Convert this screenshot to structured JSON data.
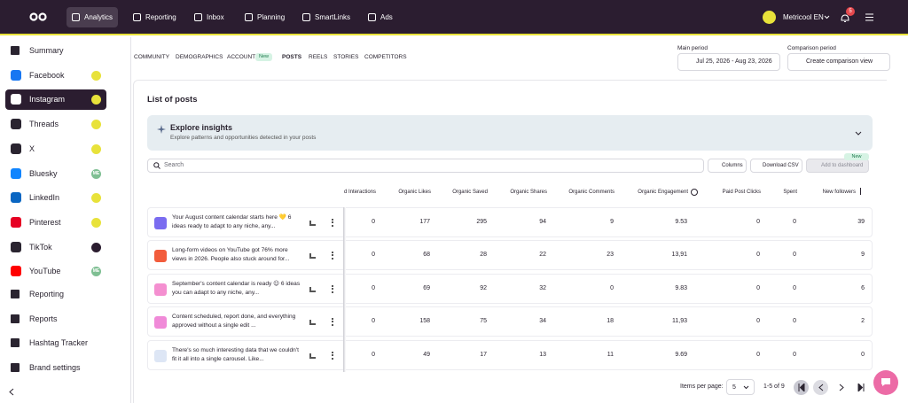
{
  "topnav": {
    "items": [
      "Analytics",
      "Reporting",
      "Inbox",
      "Planning",
      "SmartLinks",
      "Ads"
    ],
    "account": "Metricool EN",
    "notifications": "5"
  },
  "sidebar": {
    "items": [
      {
        "label": "Summary"
      },
      {
        "label": "Facebook"
      },
      {
        "label": "Instagram"
      },
      {
        "label": "Threads"
      },
      {
        "label": "X"
      },
      {
        "label": "Bluesky",
        "badge": "ME"
      },
      {
        "label": "LinkedIn"
      },
      {
        "label": "Pinterest"
      },
      {
        "label": "TikTok"
      },
      {
        "label": "YouTube",
        "badge": "ME"
      },
      {
        "label": "Reporting"
      },
      {
        "label": "Reports"
      },
      {
        "label": "Hashtag Tracker"
      },
      {
        "label": "Brand settings"
      }
    ]
  },
  "tabs": {
    "items": [
      "COMMUNITY",
      "DEMOGRAPHICS",
      "ACCOUNT",
      "POSTS",
      "REELS",
      "STORIES",
      "COMPETITORS"
    ],
    "new_badge": "New"
  },
  "periods": {
    "main_label": "Main period",
    "main_value": "Jul 25, 2026 - Aug 23, 2026",
    "comparison_label": "Comparison period",
    "comparison_value": "Create comparison view"
  },
  "section_title": "List of posts",
  "insights": {
    "title": "Explore insights",
    "subtitle": "Explore patterns and opportunities detected in your posts"
  },
  "toolbar": {
    "search": "Search",
    "columns": "Columns",
    "download": "Download CSV",
    "add": "Add to dashboard",
    "new_badge": "New"
  },
  "table": {
    "columns": [
      "d Interactions",
      "Organic Likes",
      "Organic Saved",
      "Organic Shares",
      "Organic Comments",
      "Organic Engagement",
      "Paid Post Clicks",
      "Spent",
      "New followers"
    ],
    "rows": [
      {
        "text": "Your August content calendar starts here 💛 6 ideas ready to adapt to any niche, any...",
        "cells": [
          "0",
          "177",
          "295",
          "94",
          "9",
          "9.53",
          "0",
          "0",
          "39"
        ]
      },
      {
        "text": "Long-form videos on YouTube got 76% more views in 2026. People also stuck around for...",
        "cells": [
          "0",
          "68",
          "28",
          "22",
          "23",
          "13,91",
          "0",
          "0",
          "9"
        ]
      },
      {
        "text": "September's content calendar is ready 😉 6 ideas you can adapt to any niche, any...",
        "cells": [
          "0",
          "69",
          "92",
          "32",
          "0",
          "9.83",
          "0",
          "0",
          "6"
        ]
      },
      {
        "text": "Content scheduled, report done, and everything approved without a single edit ...",
        "cells": [
          "0",
          "158",
          "75",
          "34",
          "18",
          "11,93",
          "0",
          "0",
          "2"
        ]
      },
      {
        "text": "There's so much interesting data that we couldn't fit it all into a single carousel. Like...",
        "cells": [
          "0",
          "49",
          "17",
          "13",
          "11",
          "9.69",
          "0",
          "0",
          "0"
        ]
      }
    ]
  },
  "pagination": {
    "items_label": "Items per page:",
    "page_size": "5",
    "range": "1-5 of 9"
  }
}
